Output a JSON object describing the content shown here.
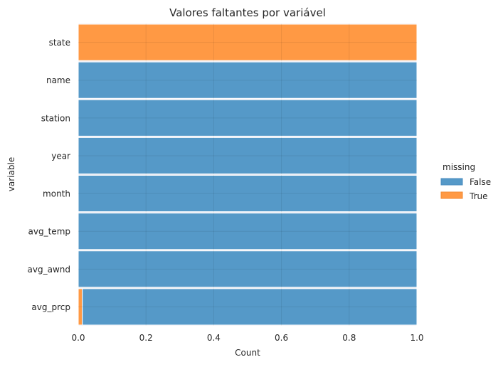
{
  "chart_data": {
    "type": "bar",
    "orientation": "horizontal",
    "stacked": true,
    "normalized": true,
    "title": "Valores faltantes por variável",
    "xlabel": "Count",
    "ylabel": "variable",
    "xlim": [
      0.0,
      1.0
    ],
    "xticks": [
      "0.0",
      "0.2",
      "0.4",
      "0.6",
      "0.8",
      "1.0"
    ],
    "grid": true,
    "categories": [
      "state",
      "name",
      "station",
      "year",
      "month",
      "avg_temp",
      "avg_awnd",
      "avg_prcp"
    ],
    "series": [
      {
        "name": "True",
        "color": "#ff9944",
        "values": [
          1.0,
          0.0,
          0.0,
          0.0,
          0.0,
          0.0,
          0.0,
          0.012
        ]
      },
      {
        "name": "False",
        "color": "#5599c8",
        "values": [
          0.0,
          1.0,
          1.0,
          1.0,
          1.0,
          1.0,
          1.0,
          0.988
        ]
      }
    ],
    "legend": {
      "title": "missing",
      "placement": "right",
      "entries": [
        "False",
        "True"
      ]
    }
  }
}
